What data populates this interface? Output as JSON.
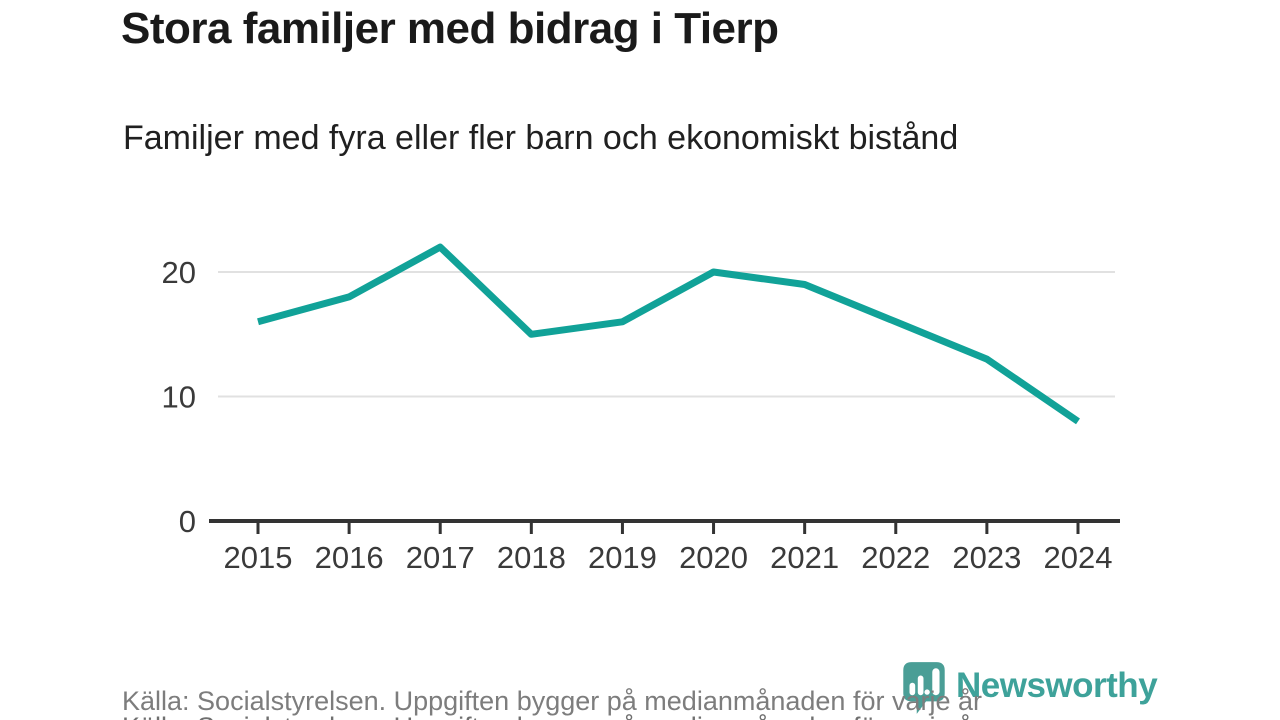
{
  "header": {
    "title": "Stora familjer med bidrag i Tierp",
    "subtitle": "Familjer med fyra eller fler barn och ekonomiskt bistånd"
  },
  "chart_data": {
    "type": "line",
    "title": "Stora familjer med bidrag i Tierp",
    "subtitle": "Familjer med fyra eller fler barn och ekonomiskt bistånd",
    "categories": [
      "2015",
      "2016",
      "2017",
      "2018",
      "2019",
      "2020",
      "2021",
      "2022",
      "2023",
      "2024"
    ],
    "series": [
      {
        "name": "Familjer med fyra eller fler barn och ekonomiskt bistånd",
        "values": [
          16,
          18,
          22,
          15,
          16,
          20,
          19,
          16,
          13,
          8
        ]
      }
    ],
    "xlabel": "",
    "ylabel": "",
    "ylim": [
      0,
      23.5
    ],
    "yticks": [
      0,
      10,
      20
    ],
    "grid": "horizontal-only",
    "legend_position": "none",
    "line_color": "#11a298"
  },
  "footer": {
    "source": "Källa: Socialstyrelsen. Uppgiften bygger på medianmånaden för varje år",
    "brand": "Newsworthy"
  },
  "icons": {
    "logo_icon": "newsworthy-speech-bubble-barchart-icon"
  },
  "colors": {
    "line": "#11a298",
    "logo_bubble": "#4a9e96",
    "brand_text": "#3ea29a",
    "gridline": "#e1e1e1",
    "axis": "#333333",
    "tick_label": "#3a3a3a",
    "title_text": "#1a1a1a",
    "subtitle_text": "#202020",
    "source_text": "#7d7d7d",
    "background": "#ffffff"
  }
}
